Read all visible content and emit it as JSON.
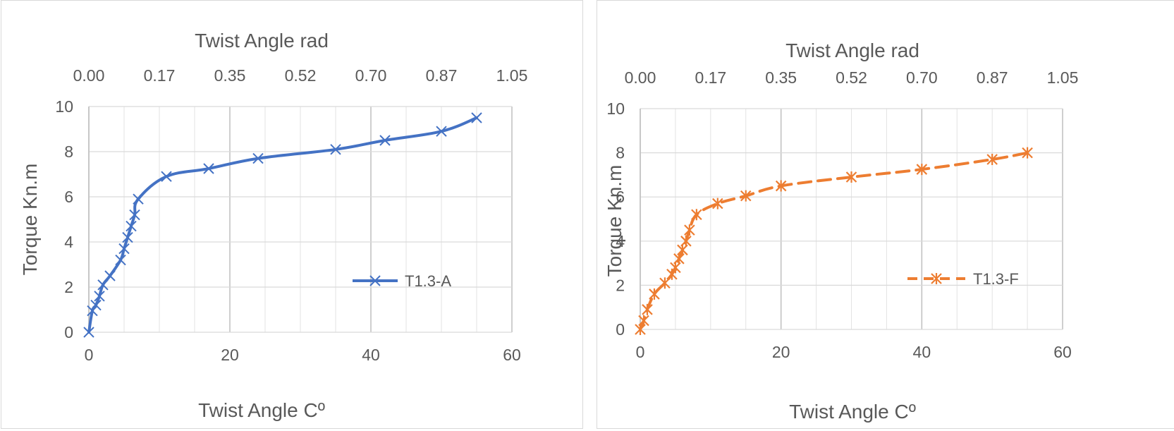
{
  "chart_data": [
    {
      "type": "line",
      "series": [
        {
          "name": "T1.3-A",
          "color": "#4472C4",
          "line_style": "solid",
          "marker": "x",
          "x": [
            0,
            0.5,
            1,
            1.5,
            2,
            3,
            4.5,
            5,
            5.5,
            6,
            6.5,
            7,
            11,
            17,
            24,
            35,
            42,
            50,
            55
          ],
          "y": [
            0,
            0.95,
            1.2,
            1.6,
            2.1,
            2.5,
            3.2,
            3.7,
            4.2,
            4.7,
            5.2,
            5.9,
            6.9,
            7.25,
            7.7,
            8.1,
            8.5,
            8.9,
            9.5
          ]
        }
      ],
      "title": "",
      "xlabel": "Twist Angle Cº",
      "ylabel": "Torque Kn.m",
      "x2label": "Twist Angle rad",
      "xlim": [
        0,
        60
      ],
      "ylim": [
        0,
        10
      ],
      "x_ticks": [
        "0",
        "20",
        "40",
        "60"
      ],
      "y_ticks": [
        "0",
        "2",
        "4",
        "6",
        "8",
        "10"
      ],
      "x2_ticks": [
        "0.00",
        "0.17",
        "0.35",
        "0.52",
        "0.70",
        "0.87",
        "1.05"
      ],
      "grid": true,
      "legend": "right"
    },
    {
      "type": "line",
      "series": [
        {
          "name": "T1.3-F",
          "color": "#ED7D31",
          "line_style": "dashed",
          "marker": "asterisk",
          "x": [
            0,
            0.5,
            1,
            2,
            3.5,
            4.5,
            5,
            5.5,
            6,
            6.5,
            7,
            8,
            11,
            15,
            20,
            30,
            40,
            50,
            55
          ],
          "y": [
            0,
            0.4,
            0.9,
            1.6,
            2.1,
            2.5,
            2.8,
            3.2,
            3.6,
            4.0,
            4.5,
            5.2,
            5.7,
            6.05,
            6.5,
            6.9,
            7.25,
            7.7,
            8.0
          ]
        }
      ],
      "title": "",
      "xlabel": "Twist Angle Cº",
      "ylabel": "Torque Kn.m",
      "x2label": "Twist Angle rad",
      "xlim": [
        0,
        60
      ],
      "ylim": [
        0,
        10
      ],
      "x_ticks": [
        "0",
        "20",
        "40",
        "60"
      ],
      "y_ticks": [
        "0",
        "2",
        "4",
        "6",
        "8",
        "10"
      ],
      "x2_ticks": [
        "0.00",
        "0.17",
        "0.35",
        "0.52",
        "0.70",
        "0.87",
        "1.05"
      ],
      "grid": true,
      "legend": "right"
    }
  ]
}
